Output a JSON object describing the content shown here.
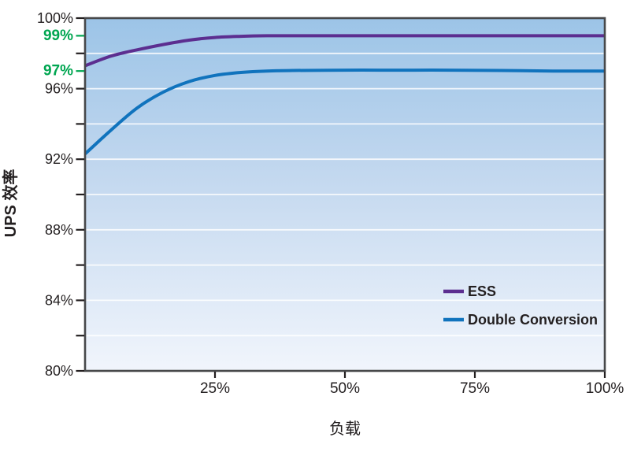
{
  "colors": {
    "ess_purple": "#5C2E90",
    "double_conversion_blue": "#1073BD",
    "highlight_green": "#00A651",
    "text_dark": "#231F20",
    "grid_white": "#FFFFFF",
    "plot_bg_top": "#9CC4E7",
    "plot_bg_mid": "#C3D8EF",
    "plot_bg_bottom": "#F1F5FC",
    "frame_dark": "#47484A"
  },
  "chart_data": {
    "type": "line",
    "title": "",
    "xlabel": "负载",
    "ylabel": "UPS 效率",
    "xlim": [
      0,
      100
    ],
    "ylim": [
      80,
      100
    ],
    "grid": true,
    "gridlines_y": [
      98,
      96,
      94,
      92,
      90,
      88,
      86,
      84,
      82
    ],
    "legend_position": "inside-right-lower",
    "x_axis": {
      "ticks": [
        {
          "value": 25,
          "label": "25%"
        },
        {
          "value": 50,
          "label": "50%"
        },
        {
          "value": 75,
          "label": "75%"
        },
        {
          "value": 100,
          "label": "100%"
        }
      ]
    },
    "y_axis": {
      "ticks": [
        {
          "value": 100,
          "label": "100%",
          "highlight": false
        },
        {
          "value": 99,
          "label": "99%",
          "highlight": true
        },
        {
          "value": 98,
          "label": "",
          "highlight": false
        },
        {
          "value": 97,
          "label": "97%",
          "highlight": true
        },
        {
          "value": 96,
          "label": "96%",
          "highlight": false
        },
        {
          "value": 94,
          "label": "",
          "highlight": false
        },
        {
          "value": 92,
          "label": "92%",
          "highlight": false
        },
        {
          "value": 90,
          "label": "",
          "highlight": false
        },
        {
          "value": 88,
          "label": "88%",
          "highlight": false
        },
        {
          "value": 86,
          "label": "",
          "highlight": false
        },
        {
          "value": 84,
          "label": "84%",
          "highlight": false
        },
        {
          "value": 82,
          "label": "",
          "highlight": false
        },
        {
          "value": 80,
          "label": "80%",
          "highlight": false
        }
      ]
    },
    "series": [
      {
        "name": "ESS",
        "color": "#5C2E90",
        "x": [
          0,
          5,
          10,
          15,
          20,
          25,
          30,
          35,
          40,
          50,
          60,
          70,
          80,
          90,
          100
        ],
        "y": [
          97.3,
          97.85,
          98.2,
          98.5,
          98.75,
          98.9,
          98.97,
          99,
          99,
          99,
          99,
          99,
          99,
          99,
          99
        ]
      },
      {
        "name": "Double Conversion",
        "color": "#1073BD",
        "x": [
          0,
          5,
          10,
          15,
          20,
          25,
          30,
          35,
          40,
          50,
          60,
          70,
          80,
          90,
          100
        ],
        "y": [
          92.3,
          93.65,
          94.9,
          95.8,
          96.4,
          96.75,
          96.92,
          97.0,
          97.03,
          97.05,
          97.05,
          97.05,
          97.03,
          97.0,
          97.0
        ]
      }
    ]
  }
}
